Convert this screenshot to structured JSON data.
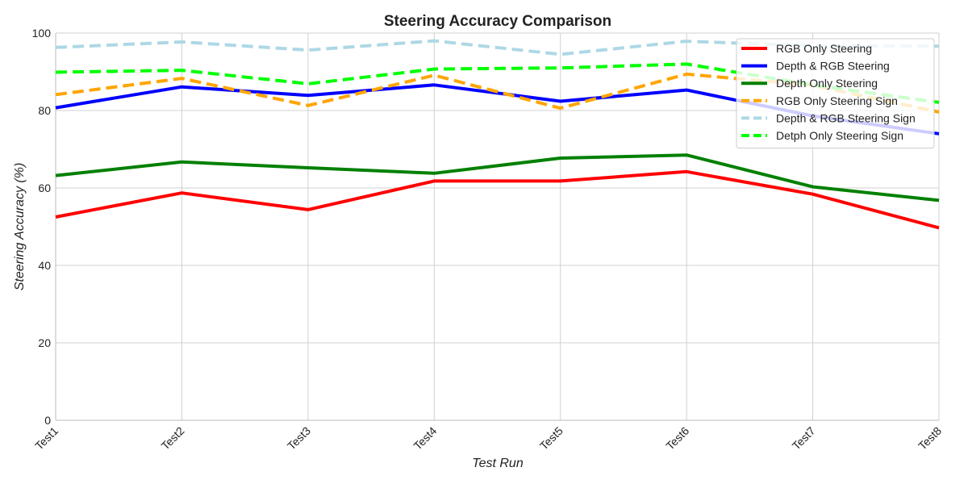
{
  "chart_data": {
    "type": "line",
    "title": "Steering Accuracy Comparison",
    "xlabel": "Test Run",
    "ylabel": "Steering Accuracy (%)",
    "categories": [
      "Test1",
      "Test2",
      "Test3",
      "Test4",
      "Test5",
      "Test6",
      "Test7",
      "Test8"
    ],
    "ylim": [
      0,
      100
    ],
    "yticks": [
      "0",
      "20",
      "40",
      "60",
      "80",
      "100"
    ],
    "grid": true,
    "legend_position": "top-right",
    "series": [
      {
        "name": "RGB Only Steering",
        "color": "#ff0000",
        "style": "solid",
        "values": [
          52.5,
          58.7,
          54.4,
          61.8,
          61.8,
          64.2,
          58.4,
          49.7
        ]
      },
      {
        "name": "Depth & RGB Steering",
        "color": "#0000ff",
        "style": "solid",
        "values": [
          80.7,
          86.1,
          83.9,
          86.6,
          82.4,
          85.3,
          78.6,
          74.0
        ]
      },
      {
        "name": "Depth Only Steering",
        "color": "#008000",
        "style": "solid",
        "values": [
          63.2,
          66.7,
          65.2,
          63.8,
          67.7,
          68.5,
          60.3,
          56.8
        ]
      },
      {
        "name": "RGB Only Steering Sign",
        "color": "#ffa500",
        "style": "dashed",
        "values": [
          84.1,
          88.3,
          81.3,
          89.1,
          80.6,
          89.4,
          86.5,
          79.6
        ]
      },
      {
        "name": "Depth & RGB Steering Sign",
        "color": "#add8e6",
        "style": "dashed",
        "values": [
          96.3,
          97.7,
          95.6,
          98.0,
          94.5,
          97.9,
          96.7,
          96.6
        ]
      },
      {
        "name": "Detph Only Steering Sign",
        "color": "#00ff00",
        "style": "dashed",
        "values": [
          89.9,
          90.4,
          86.9,
          90.7,
          91.0,
          92.0,
          86.6,
          82.1
        ]
      }
    ]
  }
}
